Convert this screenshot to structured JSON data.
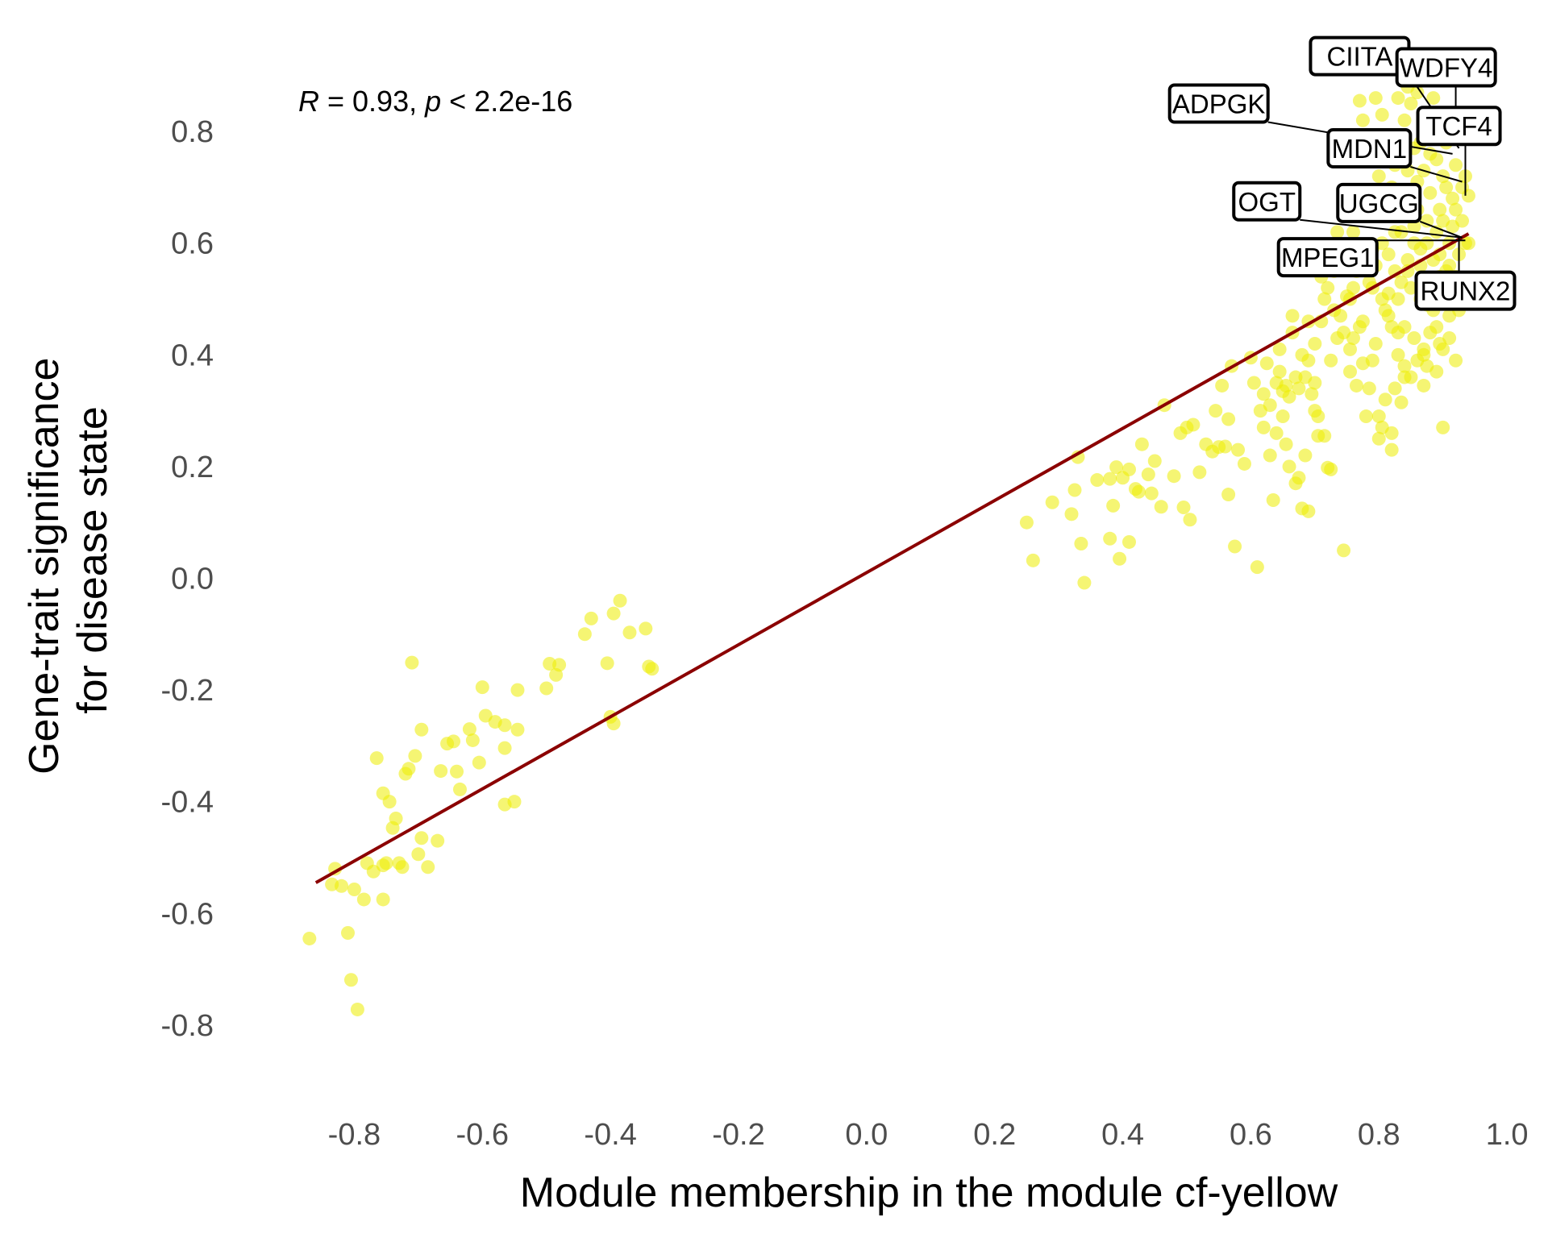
{
  "chart_data": {
    "type": "scatter",
    "title": "",
    "xlabel": "Module membership in the module cf-yellow",
    "ylabel_lines": [
      "Gene-trait significance",
      "for disease state"
    ],
    "xlim": [
      -0.9,
      1.02
    ],
    "ylim": [
      -0.92,
      0.92
    ],
    "x_ticks": [
      -0.8,
      -0.6,
      -0.4,
      -0.2,
      0.0,
      0.2,
      0.4,
      0.6,
      0.8,
      1.0
    ],
    "x_tick_labels": [
      "-0.8",
      "-0.6",
      "-0.4",
      "-0.2",
      "0.0",
      "0.2",
      "0.4",
      "0.6",
      "0.8",
      "1.0"
    ],
    "y_ticks": [
      -0.8,
      -0.6,
      -0.4,
      -0.2,
      0.0,
      0.2,
      0.4,
      0.6,
      0.8
    ],
    "y_tick_labels": [
      "-0.8",
      "-0.6",
      "-0.4",
      "-0.2",
      "0.0",
      "0.2",
      "0.4",
      "0.6",
      "0.8"
    ],
    "grid": false,
    "point_color": "#eded00",
    "line_color": "#8b0000",
    "annotation": {
      "r_symbol": "R",
      "r_text": " = 0.93, ",
      "p_symbol": "p",
      "p_text": " < 2.2e-16"
    },
    "regression_line": {
      "x": [
        -0.86,
        0.94
      ],
      "y": [
        -0.545,
        0.617
      ]
    },
    "labels": [
      {
        "text": "CIITA",
        "label_x": 0.77,
        "label_y": 0.935,
        "point_x": 0.925,
        "point_y": 0.77
      },
      {
        "text": "WDFY4",
        "label_x": 0.905,
        "label_y": 0.915,
        "point_x": 0.92,
        "point_y": 0.79
      },
      {
        "text": "ADPGK",
        "label_x": 0.55,
        "label_y": 0.85,
        "point_x": 0.915,
        "point_y": 0.76
      },
      {
        "text": "TCF4",
        "label_x": 0.925,
        "label_y": 0.81,
        "point_x": 0.935,
        "point_y": 0.685
      },
      {
        "text": "MDN1",
        "label_x": 0.785,
        "label_y": 0.77,
        "point_x": 0.93,
        "point_y": 0.71
      },
      {
        "text": "OGT",
        "label_x": 0.625,
        "label_y": 0.675,
        "point_x": 0.93,
        "point_y": 0.61
      },
      {
        "text": "UGCG",
        "label_x": 0.8,
        "label_y": 0.672,
        "point_x": 0.93,
        "point_y": 0.61
      },
      {
        "text": "MPEG1",
        "label_x": 0.72,
        "label_y": 0.575,
        "point_x": 0.935,
        "point_y": 0.605
      },
      {
        "text": "RUNX2",
        "label_x": 0.935,
        "label_y": 0.515,
        "point_x": 0.925,
        "point_y": 0.61
      }
    ],
    "points": [
      [
        -0.87,
        -0.645
      ],
      [
        -0.83,
        -0.52
      ],
      [
        -0.835,
        -0.548
      ],
      [
        -0.82,
        -0.551
      ],
      [
        -0.81,
        -0.635
      ],
      [
        -0.805,
        -0.719
      ],
      [
        -0.8,
        -0.557
      ],
      [
        -0.795,
        -0.772
      ],
      [
        -0.785,
        -0.575
      ],
      [
        -0.78,
        -0.51
      ],
      [
        -0.77,
        -0.525
      ],
      [
        -0.765,
        -0.322
      ],
      [
        -0.755,
        -0.385
      ],
      [
        -0.755,
        -0.575
      ],
      [
        -0.755,
        -0.514
      ],
      [
        -0.75,
        -0.51
      ],
      [
        -0.745,
        -0.4
      ],
      [
        -0.74,
        -0.447
      ],
      [
        -0.735,
        -0.43
      ],
      [
        -0.73,
        -0.51
      ],
      [
        -0.725,
        -0.517
      ],
      [
        -0.72,
        -0.35
      ],
      [
        -0.715,
        -0.341
      ],
      [
        -0.71,
        -0.151
      ],
      [
        -0.705,
        -0.318
      ],
      [
        -0.7,
        -0.494
      ],
      [
        -0.695,
        -0.271
      ],
      [
        -0.695,
        -0.465
      ],
      [
        -0.685,
        -0.517
      ],
      [
        -0.67,
        -0.47
      ],
      [
        -0.665,
        -0.345
      ],
      [
        -0.655,
        -0.296
      ],
      [
        -0.645,
        -0.292
      ],
      [
        -0.64,
        -0.346
      ],
      [
        -0.635,
        -0.378
      ],
      [
        -0.62,
        -0.27
      ],
      [
        -0.615,
        -0.29
      ],
      [
        -0.605,
        -0.33
      ],
      [
        -0.6,
        -0.195
      ],
      [
        -0.595,
        -0.246
      ],
      [
        -0.58,
        -0.257
      ],
      [
        -0.565,
        -0.263
      ],
      [
        -0.565,
        -0.304
      ],
      [
        -0.565,
        -0.405
      ],
      [
        -0.55,
        -0.4
      ],
      [
        -0.545,
        -0.2
      ],
      [
        -0.545,
        -0.271
      ],
      [
        -0.5,
        -0.197
      ],
      [
        -0.495,
        -0.153
      ],
      [
        -0.485,
        -0.173
      ],
      [
        -0.48,
        -0.155
      ],
      [
        -0.44,
        -0.1
      ],
      [
        -0.43,
        -0.072
      ],
      [
        -0.405,
        -0.152
      ],
      [
        -0.4,
        -0.248
      ],
      [
        -0.395,
        -0.26
      ],
      [
        -0.395,
        -0.063
      ],
      [
        -0.385,
        -0.04
      ],
      [
        -0.37,
        -0.097
      ],
      [
        -0.345,
        -0.09
      ],
      [
        -0.34,
        -0.158
      ],
      [
        -0.335,
        -0.162
      ],
      [
        0.25,
        0.1
      ],
      [
        0.26,
        0.032
      ],
      [
        0.29,
        0.136
      ],
      [
        0.32,
        0.115
      ],
      [
        0.325,
        0.158
      ],
      [
        0.33,
        0.217
      ],
      [
        0.335,
        0.062
      ],
      [
        0.34,
        -0.008
      ],
      [
        0.36,
        0.176
      ],
      [
        0.38,
        0.178
      ],
      [
        0.38,
        0.071
      ],
      [
        0.385,
        0.13
      ],
      [
        0.39,
        0.199
      ],
      [
        0.395,
        0.035
      ],
      [
        0.4,
        0.18
      ],
      [
        0.41,
        0.065
      ],
      [
        0.41,
        0.195
      ],
      [
        0.42,
        0.16
      ],
      [
        0.425,
        0.155
      ],
      [
        0.43,
        0.24
      ],
      [
        0.44,
        0.186
      ],
      [
        0.445,
        0.152
      ],
      [
        0.45,
        0.21
      ],
      [
        0.46,
        0.128
      ],
      [
        0.465,
        0.31
      ],
      [
        0.48,
        0.183
      ],
      [
        0.49,
        0.26
      ],
      [
        0.495,
        0.127
      ],
      [
        0.5,
        0.27
      ],
      [
        0.505,
        0.105
      ],
      [
        0.51,
        0.275
      ],
      [
        0.52,
        0.19
      ],
      [
        0.53,
        0.24
      ],
      [
        0.54,
        0.227
      ],
      [
        0.545,
        0.3
      ],
      [
        0.55,
        0.235
      ],
      [
        0.555,
        0.345
      ],
      [
        0.56,
        0.236
      ],
      [
        0.565,
        0.285
      ],
      [
        0.565,
        0.15
      ],
      [
        0.57,
        0.38
      ],
      [
        0.575,
        0.057
      ],
      [
        0.58,
        0.23
      ],
      [
        0.59,
        0.205
      ],
      [
        0.6,
        0.395
      ],
      [
        0.605,
        0.35
      ],
      [
        0.61,
        0.02
      ],
      [
        0.615,
        0.3
      ],
      [
        0.62,
        0.33
      ],
      [
        0.625,
        0.385
      ],
      [
        0.63,
        0.22
      ],
      [
        0.635,
        0.14
      ],
      [
        0.64,
        0.26
      ],
      [
        0.645,
        0.41
      ],
      [
        0.645,
        0.37
      ],
      [
        0.65,
        0.335
      ],
      [
        0.655,
        0.24
      ],
      [
        0.66,
        0.2
      ],
      [
        0.66,
        0.325
      ],
      [
        0.665,
        0.44
      ],
      [
        0.665,
        0.47
      ],
      [
        0.67,
        0.17
      ],
      [
        0.675,
        0.34
      ],
      [
        0.675,
        0.18
      ],
      [
        0.68,
        0.125
      ],
      [
        0.685,
        0.36
      ],
      [
        0.685,
        0.22
      ],
      [
        0.69,
        0.12
      ],
      [
        0.69,
        0.39
      ],
      [
        0.695,
        0.33
      ],
      [
        0.7,
        0.42
      ],
      [
        0.7,
        0.3
      ],
      [
        0.705,
        0.29
      ],
      [
        0.705,
        0.255
      ],
      [
        0.71,
        0.46
      ],
      [
        0.715,
        0.5
      ],
      [
        0.715,
        0.255
      ],
      [
        0.72,
        0.198
      ],
      [
        0.72,
        0.52
      ],
      [
        0.725,
        0.39
      ],
      [
        0.725,
        0.195
      ],
      [
        0.73,
        0.55
      ],
      [
        0.735,
        0.43
      ],
      [
        0.735,
        0.58
      ],
      [
        0.735,
        0.62
      ],
      [
        0.74,
        0.47
      ],
      [
        0.745,
        0.44
      ],
      [
        0.745,
        0.05
      ],
      [
        0.75,
        0.505
      ],
      [
        0.755,
        0.37
      ],
      [
        0.755,
        0.5
      ],
      [
        0.76,
        0.52
      ],
      [
        0.765,
        0.345
      ],
      [
        0.77,
        0.45
      ],
      [
        0.77,
        0.57
      ],
      [
        0.775,
        0.385
      ],
      [
        0.775,
        0.46
      ],
      [
        0.78,
        0.29
      ],
      [
        0.785,
        0.53
      ],
      [
        0.785,
        0.34
      ],
      [
        0.79,
        0.52
      ],
      [
        0.79,
        0.39
      ],
      [
        0.795,
        0.42
      ],
      [
        0.8,
        0.29
      ],
      [
        0.8,
        0.25
      ],
      [
        0.805,
        0.6
      ],
      [
        0.805,
        0.27
      ],
      [
        0.81,
        0.32
      ],
      [
        0.81,
        0.48
      ],
      [
        0.815,
        0.51
      ],
      [
        0.815,
        0.47
      ],
      [
        0.82,
        0.23
      ],
      [
        0.82,
        0.26
      ],
      [
        0.825,
        0.34
      ],
      [
        0.825,
        0.55
      ],
      [
        0.83,
        0.44
      ],
      [
        0.83,
        0.5
      ],
      [
        0.835,
        0.315
      ],
      [
        0.835,
        0.62
      ],
      [
        0.84,
        0.38
      ],
      [
        0.84,
        0.45
      ],
      [
        0.845,
        0.88
      ],
      [
        0.845,
        0.57
      ],
      [
        0.85,
        0.85
      ],
      [
        0.85,
        0.52
      ],
      [
        0.855,
        0.43
      ],
      [
        0.855,
        0.63
      ],
      [
        0.86,
        0.71
      ],
      [
        0.86,
        0.87
      ],
      [
        0.865,
        0.78
      ],
      [
        0.865,
        0.5
      ],
      [
        0.87,
        0.41
      ],
      [
        0.87,
        0.345
      ],
      [
        0.875,
        0.6
      ],
      [
        0.875,
        0.81
      ],
      [
        0.88,
        0.53
      ],
      [
        0.88,
        0.76
      ],
      [
        0.885,
        0.48
      ],
      [
        0.885,
        0.86
      ],
      [
        0.89,
        0.62
      ],
      [
        0.89,
        0.37
      ],
      [
        0.895,
        0.66
      ],
      [
        0.895,
        0.42
      ],
      [
        0.9,
        0.72
      ],
      [
        0.9,
        0.27
      ],
      [
        0.905,
        0.55
      ],
      [
        0.905,
        0.78
      ],
      [
        0.91,
        0.47
      ],
      [
        0.91,
        0.6
      ],
      [
        0.915,
        0.82
      ],
      [
        0.915,
        0.68
      ],
      [
        0.92,
        0.74
      ],
      [
        0.92,
        0.54
      ],
      [
        0.925,
        0.58
      ],
      [
        0.925,
        0.48
      ],
      [
        0.93,
        0.64
      ],
      [
        0.93,
        0.7
      ],
      [
        0.935,
        0.6
      ],
      [
        0.935,
        0.72
      ],
      [
        0.94,
        0.6
      ],
      [
        0.94,
        0.685
      ],
      [
        0.94,
        0.81
      ],
      [
        0.77,
        0.855
      ],
      [
        0.775,
        0.82
      ],
      [
        0.785,
        0.79
      ],
      [
        0.79,
        0.76
      ],
      [
        0.795,
        0.86
      ],
      [
        0.8,
        0.72
      ],
      [
        0.805,
        0.83
      ],
      [
        0.81,
        0.66
      ],
      [
        0.815,
        0.78
      ],
      [
        0.82,
        0.7
      ],
      [
        0.825,
        0.74
      ],
      [
        0.83,
        0.86
      ],
      [
        0.835,
        0.69
      ],
      [
        0.84,
        0.82
      ],
      [
        0.845,
        0.73
      ],
      [
        0.85,
        0.66
      ],
      [
        0.855,
        0.77
      ],
      [
        0.86,
        0.66
      ],
      [
        0.865,
        0.59
      ],
      [
        0.87,
        0.73
      ],
      [
        0.875,
        0.64
      ],
      [
        0.88,
        0.69
      ],
      [
        0.885,
        0.57
      ],
      [
        0.89,
        0.75
      ],
      [
        0.895,
        0.58
      ],
      [
        0.9,
        0.64
      ],
      [
        0.905,
        0.7
      ],
      [
        0.91,
        0.56
      ],
      [
        0.915,
        0.63
      ],
      [
        0.92,
        0.66
      ],
      [
        0.795,
        0.56
      ],
      [
        0.805,
        0.5
      ],
      [
        0.815,
        0.58
      ],
      [
        0.825,
        0.62
      ],
      [
        0.835,
        0.53
      ],
      [
        0.845,
        0.55
      ],
      [
        0.855,
        0.6
      ],
      [
        0.865,
        0.56
      ],
      [
        0.875,
        0.49
      ],
      [
        0.885,
        0.51
      ],
      [
        0.895,
        0.54
      ],
      [
        0.76,
        0.62
      ],
      [
        0.765,
        0.55
      ],
      [
        0.78,
        0.66
      ],
      [
        0.79,
        0.59
      ],
      [
        0.72,
        0.59
      ],
      [
        0.71,
        0.54
      ],
      [
        0.745,
        0.57
      ],
      [
        0.755,
        0.41
      ],
      [
        0.76,
        0.43
      ],
      [
        0.73,
        0.48
      ],
      [
        0.7,
        0.35
      ],
      [
        0.68,
        0.4
      ],
      [
        0.69,
        0.46
      ],
      [
        0.65,
        0.29
      ],
      [
        0.64,
        0.35
      ],
      [
        0.63,
        0.31
      ],
      [
        0.62,
        0.27
      ],
      [
        0.655,
        0.345
      ],
      [
        0.67,
        0.36
      ],
      [
        0.86,
        0.39
      ],
      [
        0.87,
        0.4
      ],
      [
        0.875,
        0.38
      ],
      [
        0.88,
        0.44
      ],
      [
        0.89,
        0.45
      ],
      [
        0.9,
        0.41
      ],
      [
        0.91,
        0.43
      ],
      [
        0.92,
        0.39
      ],
      [
        0.82,
        0.45
      ],
      [
        0.83,
        0.4
      ],
      [
        0.84,
        0.36
      ],
      [
        0.85,
        0.36
      ]
    ]
  }
}
